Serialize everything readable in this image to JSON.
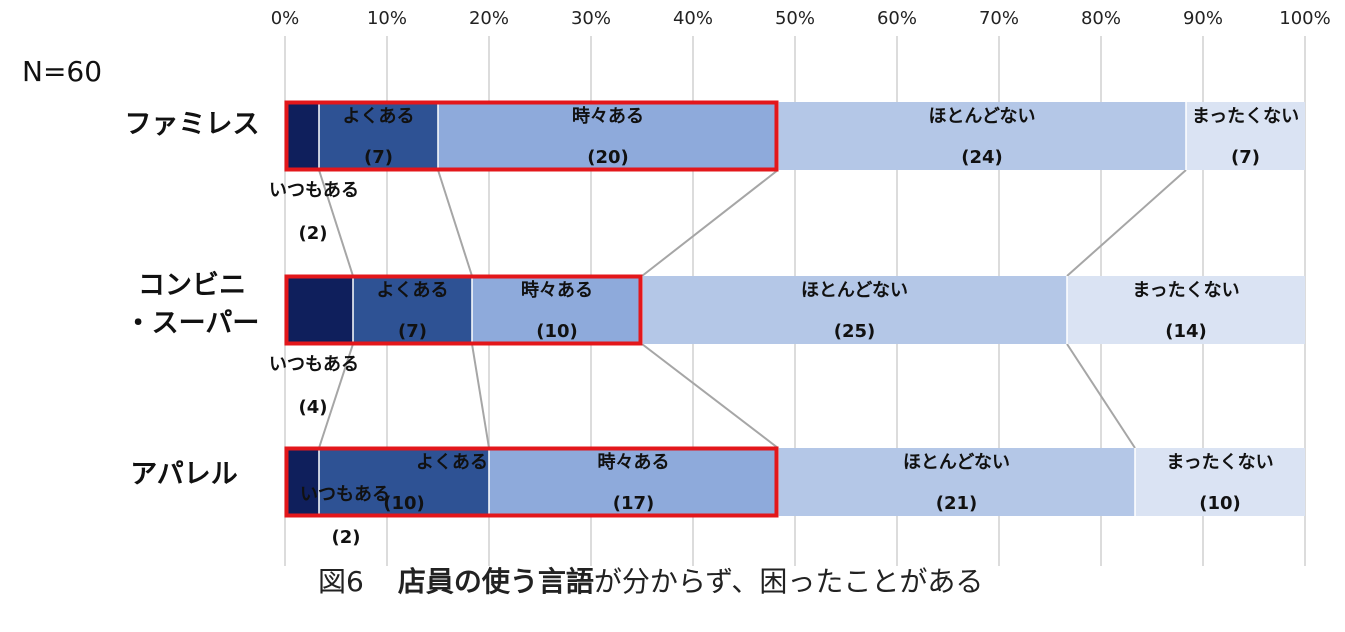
{
  "n_label": "N=60",
  "caption": {
    "figure": "図6",
    "bold": "店員の使う言語",
    "rest": "が分からず、困ったことがある"
  },
  "chart_data": {
    "type": "bar",
    "orientation": "horizontal-stacked-100",
    "x_ticks": [
      "0%",
      "10%",
      "20%",
      "30%",
      "40%",
      "50%",
      "60%",
      "70%",
      "80%",
      "90%",
      "100%"
    ],
    "xlim": [
      0,
      100
    ],
    "grid": true,
    "categories": [
      "ファミレス",
      "コンビニ\n・スーパー",
      "アパレル"
    ],
    "category_lines": [
      [
        "ファミレス"
      ],
      [
        "コンビニ",
        "・スーパー"
      ],
      [
        "アパレル"
      ]
    ],
    "series": [
      {
        "name": "いつもある",
        "color": "#0f1f5c",
        "values": [
          2,
          4,
          2
        ]
      },
      {
        "name": "よくある",
        "color": "#2e5294",
        "values": [
          7,
          7,
          10
        ]
      },
      {
        "name": "時々ある",
        "color": "#8eaadb",
        "values": [
          20,
          10,
          17
        ]
      },
      {
        "name": "ほとんどない",
        "color": "#b4c7e7",
        "values": [
          24,
          25,
          21
        ]
      },
      {
        "name": "まったくない",
        "color": "#dae3f3",
        "values": [
          7,
          14,
          10
        ]
      }
    ],
    "highlight": {
      "series": [
        "いつもある",
        "よくある",
        "時々ある"
      ],
      "color": "#e3171b"
    },
    "connector_color": "#a6a6a6"
  }
}
